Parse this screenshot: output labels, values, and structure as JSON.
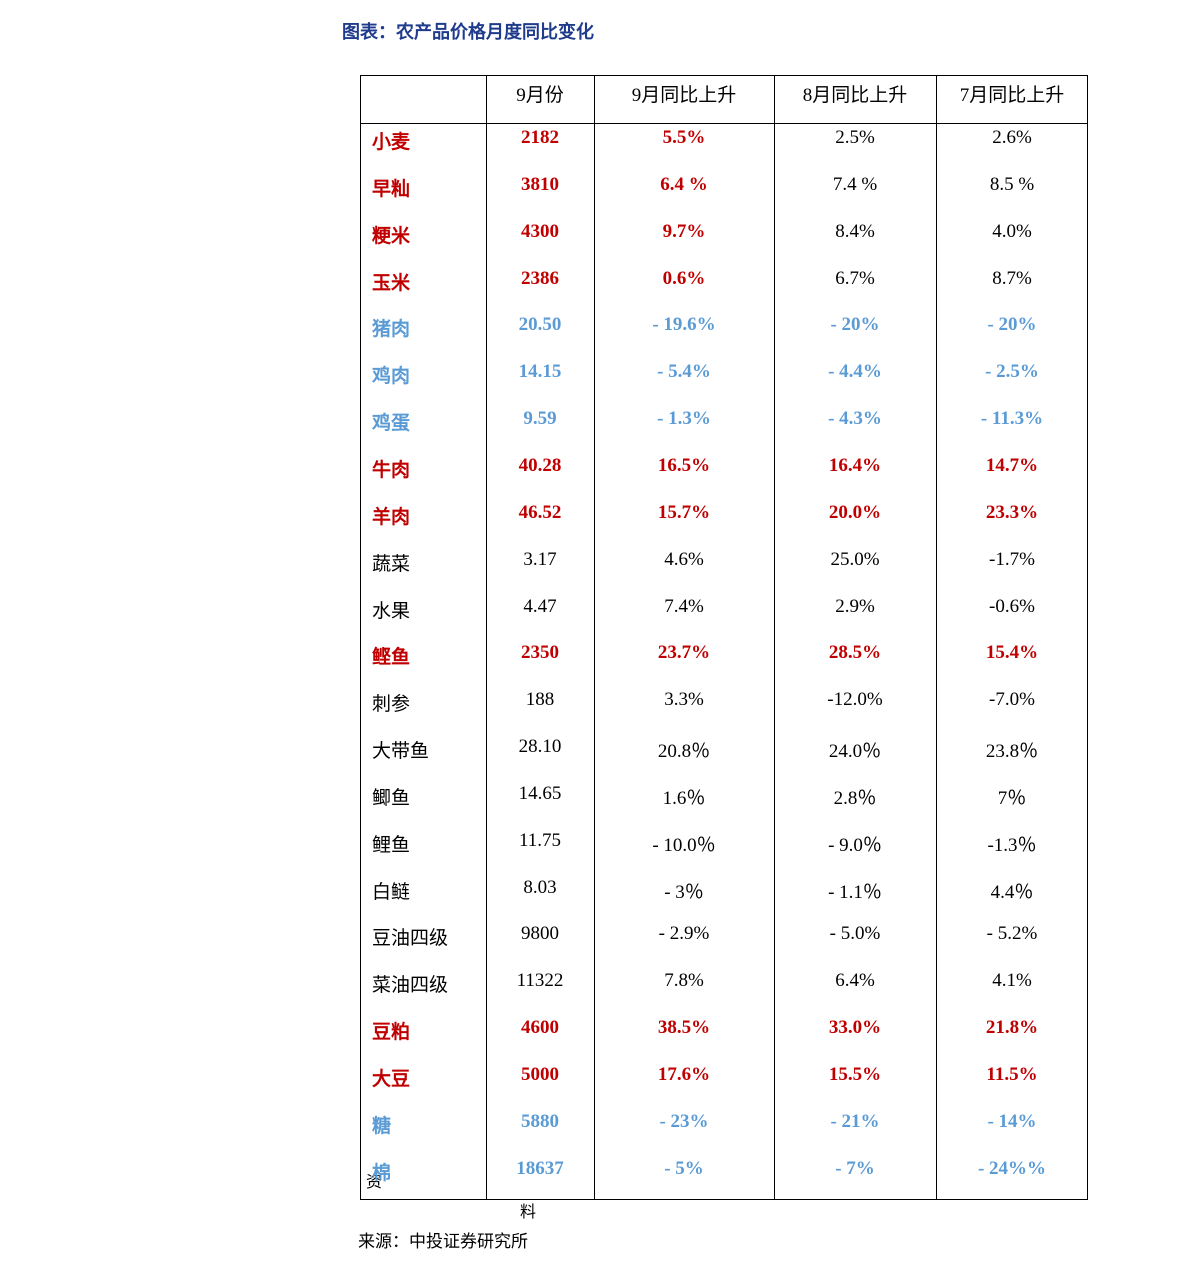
{
  "title": "图表：农产品价格月度同比变化",
  "table": {
    "header": [
      "",
      "9月份",
      "9月同比上升",
      "8月同比上升",
      "7月同比上升"
    ],
    "rows": [
      {
        "cells": [
          "小麦",
          "2182",
          "5.5%",
          "2.5%",
          "2.6%"
        ],
        "colors": [
          "#c00000",
          "#c00000",
          "#c00000",
          "#000000",
          "#000000"
        ]
      },
      {
        "cells": [
          "早籼",
          "3810",
          "6.4 %",
          "7.4 %",
          "8.5 %"
        ],
        "colors": [
          "#c00000",
          "#c00000",
          "#c00000",
          "#000000",
          "#000000"
        ]
      },
      {
        "cells": [
          "粳米",
          "4300",
          "9.7%",
          "8.4%",
          "4.0%"
        ],
        "colors": [
          "#c00000",
          "#c00000",
          "#c00000",
          "#000000",
          "#000000"
        ]
      },
      {
        "cells": [
          "玉米",
          "2386",
          "0.6%",
          "6.7%",
          "8.7%"
        ],
        "colors": [
          "#c00000",
          "#c00000",
          "#c00000",
          "#000000",
          "#000000"
        ]
      },
      {
        "cells": [
          "猪肉",
          "20.50",
          "- 19.6%",
          "- 20%",
          "- 20%"
        ],
        "colors": [
          "#5b9bd5",
          "#5b9bd5",
          "#5b9bd5",
          "#5b9bd5",
          "#5b9bd5"
        ]
      },
      {
        "cells": [
          "鸡肉",
          "14.15",
          "- 5.4%",
          "- 4.4%",
          "- 2.5%"
        ],
        "colors": [
          "#5b9bd5",
          "#5b9bd5",
          "#5b9bd5",
          "#5b9bd5",
          "#5b9bd5"
        ]
      },
      {
        "cells": [
          "鸡蛋",
          "9.59",
          "- 1.3%",
          "- 4.3%",
          "- 11.3%"
        ],
        "colors": [
          "#5b9bd5",
          "#5b9bd5",
          "#5b9bd5",
          "#5b9bd5",
          "#5b9bd5"
        ]
      },
      {
        "cells": [
          "牛肉",
          "40.28",
          "16.5%",
          "16.4%",
          "14.7%"
        ],
        "colors": [
          "#c00000",
          "#c00000",
          "#c00000",
          "#c00000",
          "#c00000"
        ]
      },
      {
        "cells": [
          "羊肉",
          "46.52",
          "15.7%",
          "20.0%",
          "23.3%"
        ],
        "colors": [
          "#c00000",
          "#c00000",
          "#c00000",
          "#c00000",
          "#c00000"
        ]
      },
      {
        "cells": [
          "蔬菜",
          "3.17",
          "4.6%",
          "25.0%",
          "-1.7%"
        ],
        "colors": [
          "#000000",
          "#000000",
          "#000000",
          "#000000",
          "#000000"
        ]
      },
      {
        "cells": [
          "水果",
          "4.47",
          "7.4%",
          "2.9%",
          "-0.6%"
        ],
        "colors": [
          "#000000",
          "#000000",
          "#000000",
          "#000000",
          "#000000"
        ]
      },
      {
        "cells": [
          "鲣鱼",
          "2350",
          "23.7%",
          "28.5%",
          "15.4%"
        ],
        "colors": [
          "#c00000",
          "#c00000",
          "#c00000",
          "#c00000",
          "#c00000"
        ]
      },
      {
        "cells": [
          "刺参",
          "188",
          "3.3%",
          "-12.0%",
          "-7.0%"
        ],
        "colors": [
          "#000000",
          "#000000",
          "#000000",
          "#000000",
          "#000000"
        ]
      },
      {
        "cells": [
          "大带鱼",
          "28.10",
          "20.8％",
          "24.0％",
          "23.8％"
        ],
        "colors": [
          "#000000",
          "#000000",
          "#000000",
          "#000000",
          "#000000"
        ]
      },
      {
        "cells": [
          "鲫鱼",
          "14.65",
          "1.6％",
          "2.8％",
          "7％"
        ],
        "colors": [
          "#000000",
          "#000000",
          "#000000",
          "#000000",
          "#000000"
        ]
      },
      {
        "cells": [
          "鲤鱼",
          "11.75",
          "- 10.0％",
          "- 9.0％",
          "-1.3％"
        ],
        "colors": [
          "#000000",
          "#000000",
          "#000000",
          "#000000",
          "#000000"
        ]
      },
      {
        "cells": [
          "白鲢",
          "8.03",
          "- 3％",
          "- 1.1％",
          "4.4％"
        ],
        "colors": [
          "#000000",
          "#000000",
          "#000000",
          "#000000",
          "#000000"
        ]
      },
      {
        "cells": [
          "豆油四级",
          "9800",
          "- 2.9%",
          "- 5.0%",
          "- 5.2%"
        ],
        "colors": [
          "#000000",
          "#000000",
          "#000000",
          "#000000",
          "#000000"
        ]
      },
      {
        "cells": [
          "菜油四级",
          "11322",
          "7.8%",
          "6.4%",
          "4.1%"
        ],
        "colors": [
          "#000000",
          "#000000",
          "#000000",
          "#000000",
          "#000000"
        ]
      },
      {
        "cells": [
          "豆粕",
          "4600",
          "38.5%",
          "33.0%",
          "21.8%"
        ],
        "colors": [
          "#c00000",
          "#c00000",
          "#c00000",
          "#c00000",
          "#c00000"
        ]
      },
      {
        "cells": [
          "大豆",
          "5000",
          "17.6%",
          "15.5%",
          "11.5%"
        ],
        "colors": [
          "#c00000",
          "#c00000",
          "#c00000",
          "#c00000",
          "#c00000"
        ]
      },
      {
        "cells": [
          "糖",
          "5880",
          "- 23%",
          "- 21%",
          "- 14%"
        ],
        "colors": [
          "#5b9bd5",
          "#5b9bd5",
          "#5b9bd5",
          "#5b9bd5",
          "#5b9bd5"
        ]
      },
      {
        "cells": [
          "棉",
          "18637",
          "- 5%",
          "- 7%",
          "- 24%%"
        ],
        "colors": [
          "#5b9bd5",
          "#5b9bd5",
          "#5b9bd5",
          "#5b9bd5",
          "#5b9bd5"
        ]
      }
    ]
  },
  "fragments": [
    "资",
    "料"
  ],
  "source": "来源：中投证券研究所"
}
